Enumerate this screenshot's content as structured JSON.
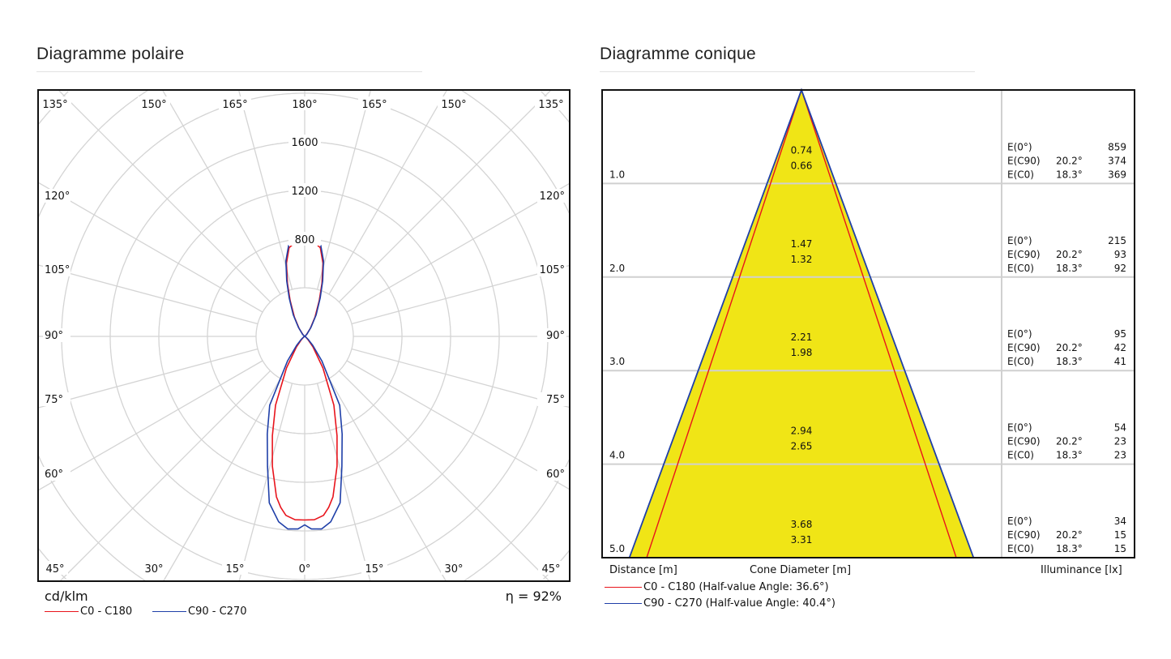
{
  "polar": {
    "title": "Diagramme polaire",
    "unit": "cd/klm",
    "efficiency": "η = 92%",
    "legend": [
      {
        "label": "C0 - C180",
        "color": "#e8141c"
      },
      {
        "label": "C90 - C270",
        "color": "#1f3fa8"
      }
    ]
  },
  "cone": {
    "title": "Diagramme conique",
    "axis_distance": "Distance [m]",
    "axis_diameter": "Cone Diameter [m]",
    "axis_illuminance": "Illuminance [lx]",
    "legend": [
      {
        "label": "C0 - C180 (Half-value Angle: 36.6°)",
        "color": "#e8141c"
      },
      {
        "label": "C90 - C270 (Half-value Angle: 40.4°)",
        "color": "#1f3fa8"
      }
    ],
    "fill_color": "#f0e516"
  },
  "chart_data": [
    {
      "type": "polar-line",
      "unit": "cd/klm",
      "radial_ticks": [
        800,
        1200,
        1600
      ],
      "ring_step": 400,
      "angle_labels_top": [
        "135°",
        "150°",
        "165°",
        "180°",
        "165°",
        "150°",
        "135°"
      ],
      "angle_labels_left": [
        "120°",
        "105°",
        "90°",
        "75°",
        "60°"
      ],
      "angle_labels_right": [
        "120°",
        "105°",
        "90°",
        "75°",
        "60°"
      ],
      "angle_labels_bottom": [
        "45°",
        "30°",
        "15°",
        "0°",
        "15°",
        "30°",
        "45°"
      ],
      "series": [
        {
          "name": "C0 - C180",
          "color": "#e8141c",
          "gamma": [
            0,
            3,
            6,
            8,
            10,
            14,
            18,
            23,
            30,
            38,
            45,
            60,
            90,
            120,
            135,
            145,
            152,
            158,
            162,
            166,
            170,
            175,
            180
          ],
          "intensity": [
            1510,
            1510,
            1480,
            1420,
            1340,
            1100,
            860,
            615,
            300,
            110,
            40,
            10,
            0,
            5,
            20,
            80,
            180,
            320,
            460,
            620,
            740,
            785,
            790
          ]
        },
        {
          "name": "C90 - C270",
          "color": "#1f3fa8",
          "gamma": [
            0,
            2,
            5,
            8,
            12,
            16,
            21,
            27,
            35,
            42,
            50,
            60,
            90,
            120,
            135,
            145,
            152,
            158,
            162,
            166,
            170,
            175,
            180
          ],
          "intensity": [
            1550,
            1585,
            1590,
            1540,
            1400,
            1110,
            860,
            635,
            245,
            100,
            35,
            10,
            0,
            5,
            25,
            90,
            200,
            340,
            480,
            640,
            760,
            800,
            805
          ]
        }
      ],
      "efficiency": "92%"
    },
    {
      "type": "table",
      "rows": [
        {
          "distance": "1.0",
          "d_c90": "0.74",
          "d_c0": "0.66",
          "e0": "859",
          "e_c90_angle": "20.2°",
          "e_c90": "374",
          "e_c0_angle": "18.3°",
          "e_c0": "369"
        },
        {
          "distance": "2.0",
          "d_c90": "1.47",
          "d_c0": "1.32",
          "e0": "215",
          "e_c90_angle": "20.2°",
          "e_c90": "93",
          "e_c0_angle": "18.3°",
          "e_c0": "92"
        },
        {
          "distance": "3.0",
          "d_c90": "2.21",
          "d_c0": "1.98",
          "e0": "95",
          "e_c90_angle": "20.2°",
          "e_c90": "42",
          "e_c0_angle": "18.3°",
          "e_c0": "41"
        },
        {
          "distance": "4.0",
          "d_c90": "2.94",
          "d_c0": "2.65",
          "e0": "54",
          "e_c90_angle": "20.2°",
          "e_c90": "23",
          "e_c0_angle": "18.3°",
          "e_c0": "23"
        },
        {
          "distance": "5.0",
          "d_c90": "3.68",
          "d_c0": "3.31",
          "e0": "34",
          "e_c90_angle": "20.2°",
          "e_c90": "15",
          "e_c0_angle": "18.3°",
          "e_c0": "15"
        }
      ],
      "row_labels": {
        "e0": "E(0°)",
        "e_c90": "E(C90)",
        "e_c0": "E(C0)"
      }
    }
  ]
}
